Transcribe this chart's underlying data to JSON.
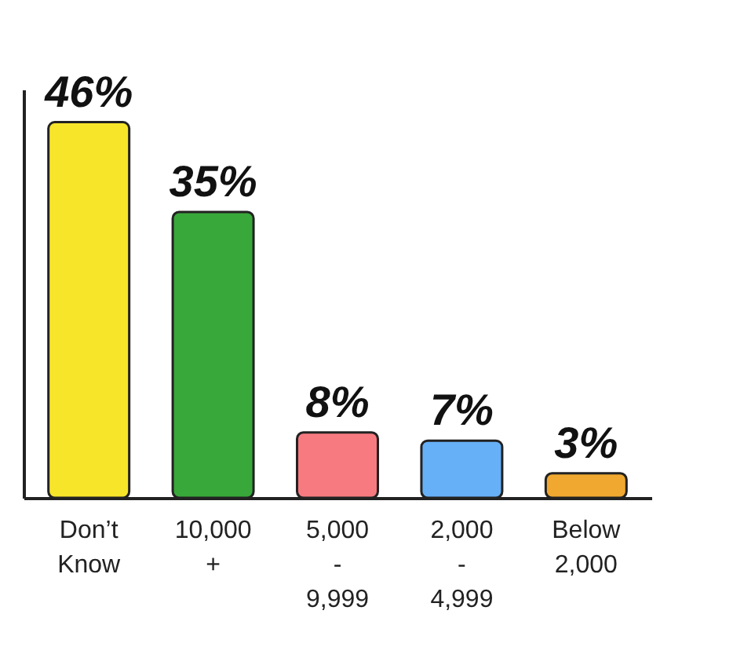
{
  "chart_data": {
    "type": "bar",
    "categories": [
      "Don’t Know",
      "10,000 +",
      "5,000 - 9,999",
      "2,000 - 4,999",
      "Below 2,000"
    ],
    "values": [
      46,
      35,
      8,
      7,
      3
    ],
    "colors": [
      "#f7e52a",
      "#38a83a",
      "#f77a80",
      "#66b0f7",
      "#f0a830"
    ],
    "value_labels": [
      "46%",
      "35%",
      "8%",
      "7%",
      "3%"
    ],
    "tick_labels": "x",
    "grid": false,
    "legend": false
  }
}
